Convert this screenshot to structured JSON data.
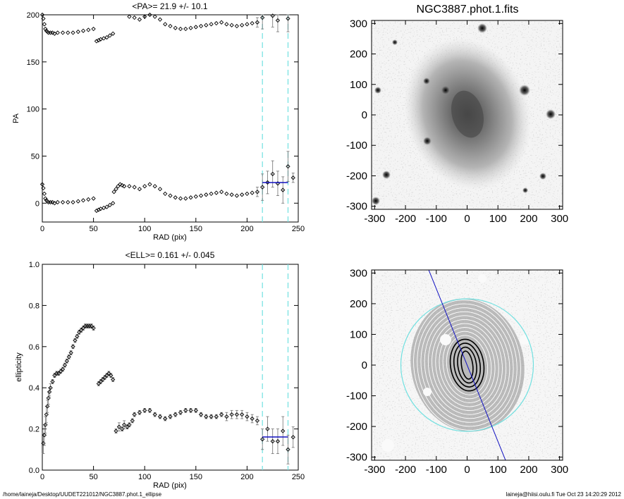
{
  "footer": {
    "path": "/home/laineja/Desktop/UUDET221012/NGC3887.phot.1_ellipse",
    "stamp": "laineja@hiisi.oulu.fi  Tue Oct 23 14:20:29 2012"
  },
  "colors": {
    "points": "#000000",
    "errorbars": "#707070",
    "mean": "#1010c0",
    "dashed": "#70e0e0"
  },
  "chart_data": [
    {
      "id": "pa",
      "type": "scatter",
      "title": "<PA>=  21.9 +/-  10.1",
      "xlabel": "RAD (pix)",
      "ylabel": "PA",
      "xlim": [
        0,
        250
      ],
      "ylim": [
        -20,
        200
      ],
      "xticks": [
        0,
        50,
        100,
        150,
        200,
        250
      ],
      "yticks": [
        0,
        50,
        100,
        150,
        200
      ],
      "vlines": [
        215,
        240
      ],
      "mean": {
        "value": 21.9,
        "x_range": [
          215,
          240
        ]
      },
      "segments": [
        {
          "x": [
            0,
            1,
            2,
            3,
            4,
            5,
            6,
            8,
            10,
            12,
            15,
            20,
            25,
            30,
            35,
            40,
            45,
            50
          ],
          "y": [
            200,
            196,
            190,
            185,
            183,
            182,
            181,
            181,
            181,
            180,
            181,
            181,
            181,
            181,
            182,
            183,
            184,
            185
          ]
        },
        {
          "x": [
            0,
            1,
            2,
            3,
            4,
            5,
            6,
            8,
            10,
            12,
            15,
            20,
            25,
            30,
            35,
            40,
            45,
            50
          ],
          "y": [
            20,
            16,
            10,
            5,
            3,
            2,
            1,
            1,
            1,
            0,
            1,
            1,
            1,
            1,
            2,
            3,
            4,
            5
          ]
        },
        {
          "x": [
            53,
            55,
            57,
            60,
            63,
            66,
            69
          ],
          "y": [
            172,
            173,
            174,
            175,
            176,
            178,
            180
          ]
        },
        {
          "x": [
            53,
            55,
            57,
            60,
            63,
            66,
            69
          ],
          "y": [
            -8,
            -7,
            -6,
            -5,
            -4,
            -2,
            0
          ]
        },
        {
          "x": [
            70,
            72,
            74,
            76,
            78,
            80,
            85,
            90,
            95,
            100,
            105,
            110,
            115,
            120,
            125,
            130,
            135,
            140,
            145,
            150,
            155,
            160,
            165,
            170,
            175,
            180,
            185,
            190,
            195,
            200,
            205
          ],
          "y": [
            12,
            15,
            18,
            20,
            19,
            18,
            18,
            17,
            15,
            18,
            20,
            18,
            15,
            10,
            8,
            6,
            5,
            5,
            6,
            7,
            8,
            9,
            10,
            11,
            12,
            10,
            9,
            8,
            9,
            10,
            11
          ]
        },
        {
          "x": [
            85,
            90,
            95,
            100,
            105,
            110,
            115,
            120,
            125,
            130,
            135,
            140,
            145,
            150,
            155,
            160,
            165,
            170,
            175,
            180,
            185,
            190,
            195,
            200,
            205
          ],
          "y": [
            198,
            197,
            195,
            198,
            200,
            198,
            195,
            190,
            188,
            186,
            185,
            185,
            186,
            187,
            188,
            189,
            190,
            191,
            192,
            190,
            189,
            188,
            189,
            190,
            191
          ]
        },
        {
          "x": [
            210,
            215,
            220,
            225,
            230,
            235,
            240,
            245
          ],
          "y": [
            12,
            17,
            22,
            31,
            21,
            14,
            39,
            27
          ],
          "err": [
            5,
            14,
            12,
            14,
            13,
            14,
            16,
            5
          ]
        },
        {
          "x": [
            210,
            215,
            225,
            230,
            240
          ],
          "y": [
            192,
            197,
            199,
            194,
            196
          ],
          "err": [
            5,
            12,
            12,
            12,
            14
          ]
        }
      ]
    },
    {
      "id": "ell",
      "type": "scatter",
      "title": "<ELL>= 0.161 +/-  0.045",
      "xlabel": "RAD (pix)",
      "ylabel": "ellipticity",
      "xlim": [
        0,
        250
      ],
      "ylim": [
        0,
        1
      ],
      "xticks": [
        0,
        50,
        100,
        150,
        200,
        250
      ],
      "yticks": [
        0.0,
        0.2,
        0.4,
        0.6,
        0.8,
        1.0
      ],
      "vlines": [
        215,
        240
      ],
      "mean": {
        "value": 0.161,
        "x_range": [
          215,
          240
        ]
      },
      "segments": [
        {
          "x": [
            1,
            2,
            3,
            4,
            5,
            6,
            7,
            8,
            10,
            12,
            14,
            16,
            18,
            20,
            22,
            24,
            26,
            28,
            30,
            32,
            34,
            36,
            38,
            40,
            42,
            44,
            46,
            48,
            50
          ],
          "y": [
            0.13,
            0.17,
            0.22,
            0.27,
            0.31,
            0.35,
            0.38,
            0.4,
            0.43,
            0.46,
            0.47,
            0.47,
            0.48,
            0.49,
            0.51,
            0.53,
            0.55,
            0.57,
            0.6,
            0.63,
            0.65,
            0.67,
            0.68,
            0.69,
            0.7,
            0.7,
            0.7,
            0.7,
            0.69
          ],
          "err": [
            0.05,
            0.05,
            0.04,
            0.04,
            0.03,
            0.03,
            0.02,
            0.02,
            0.01,
            0.01,
            0.01,
            0.01,
            0.01,
            0.01,
            0.01,
            0.01,
            0.01,
            0.01,
            0.01,
            0.01,
            0.01,
            0.01,
            0.01,
            0.01,
            0.01,
            0.01,
            0.01,
            0.01,
            0.01
          ]
        },
        {
          "x": [
            55,
            57,
            59,
            61,
            63,
            65,
            67,
            69
          ],
          "y": [
            0.42,
            0.43,
            0.44,
            0.45,
            0.46,
            0.47,
            0.46,
            0.44
          ],
          "err": [
            0.01,
            0.01,
            0.01,
            0.01,
            0.01,
            0.01,
            0.01,
            0.01
          ]
        },
        {
          "x": [
            72,
            75,
            78,
            80,
            83,
            85,
            88,
            90,
            95,
            100,
            105,
            110,
            115,
            120,
            125,
            130,
            135,
            140,
            145,
            150,
            155,
            160,
            165,
            170,
            175,
            180,
            185,
            190,
            195,
            200,
            205
          ],
          "y": [
            0.19,
            0.21,
            0.2,
            0.22,
            0.21,
            0.22,
            0.24,
            0.27,
            0.28,
            0.29,
            0.29,
            0.27,
            0.26,
            0.25,
            0.26,
            0.27,
            0.28,
            0.29,
            0.29,
            0.29,
            0.27,
            0.26,
            0.26,
            0.26,
            0.27,
            0.26,
            0.27,
            0.27,
            0.27,
            0.26,
            0.25
          ],
          "err": [
            0.01,
            0.02,
            0.01,
            0.02,
            0.01,
            0.01,
            0.01,
            0.01,
            0.01,
            0.01,
            0.01,
            0.01,
            0.01,
            0.01,
            0.01,
            0.01,
            0.01,
            0.01,
            0.01,
            0.01,
            0.01,
            0.01,
            0.01,
            0.01,
            0.01,
            0.02,
            0.02,
            0.02,
            0.02,
            0.02,
            0.02
          ]
        },
        {
          "x": [
            210,
            215,
            220,
            225,
            230,
            235,
            240,
            245
          ],
          "y": [
            0.24,
            0.15,
            0.2,
            0.14,
            0.14,
            0.19,
            0.1,
            0.16
          ],
          "err": [
            0.02,
            0.05,
            0.06,
            0.06,
            0.06,
            0.07,
            0.07,
            0.05
          ]
        }
      ]
    },
    {
      "id": "img-top",
      "type": "image",
      "title": "NGC3887.phot.1.fits",
      "xlim": [
        -310,
        310
      ],
      "ylim": [
        -310,
        310
      ],
      "xticks": [
        -300,
        -200,
        -100,
        0,
        100,
        200,
        300
      ],
      "yticks": [
        -300,
        -200,
        -100,
        0,
        100,
        200,
        300
      ]
    },
    {
      "id": "img-bottom",
      "type": "image",
      "title": "",
      "xlim": [
        -310,
        310
      ],
      "ylim": [
        -310,
        310
      ],
      "xticks": [
        -300,
        -200,
        -100,
        0,
        100,
        200,
        300
      ],
      "yticks": [
        -300,
        -200,
        -100,
        0,
        100,
        200,
        300
      ],
      "circle_radius": 215,
      "line_pa_deg": 21.9
    }
  ]
}
